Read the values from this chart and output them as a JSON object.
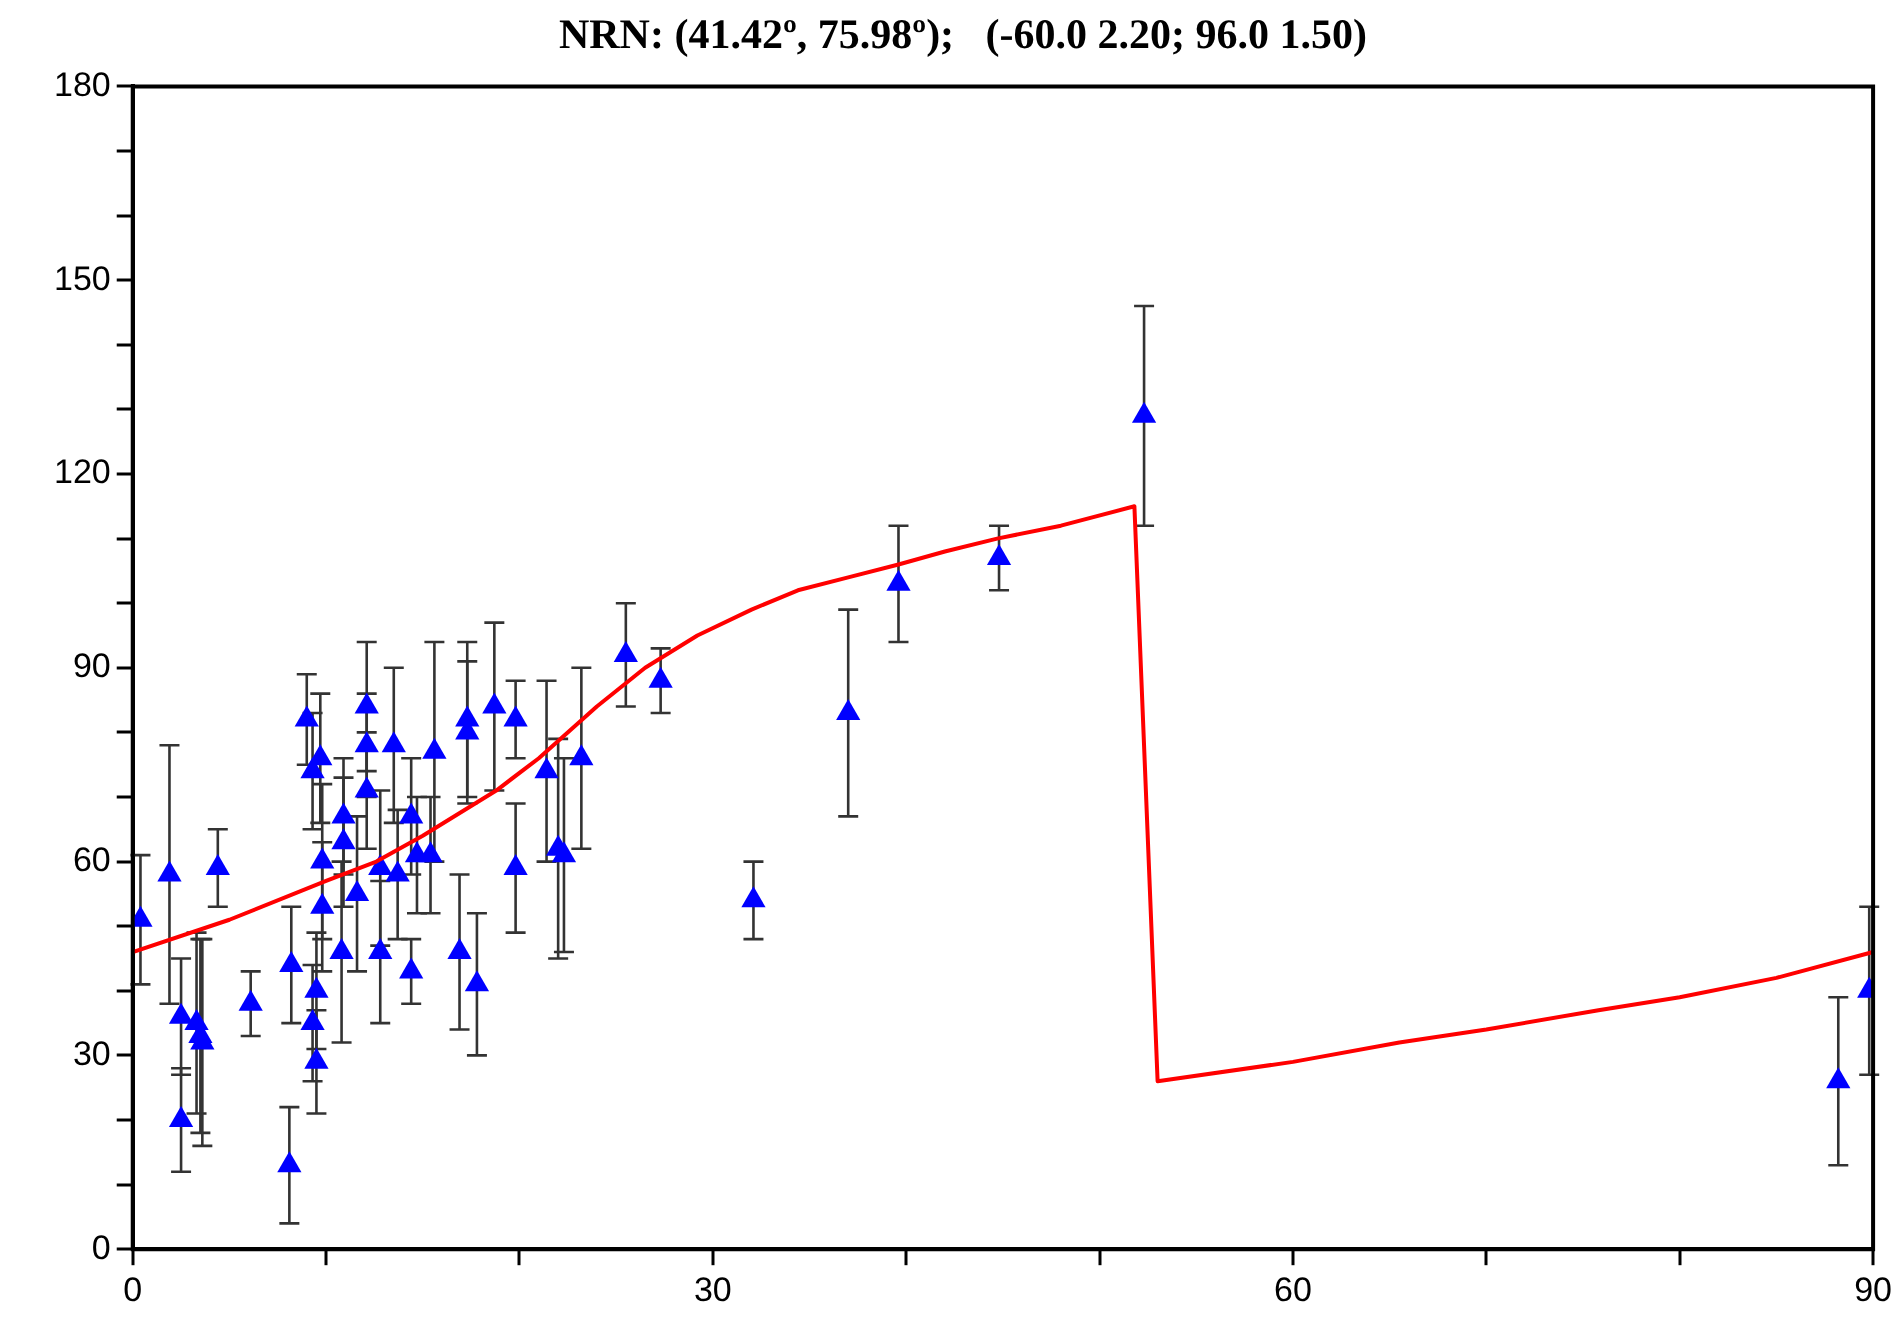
{
  "chart_data": {
    "type": "scatter",
    "title": "NRN: (41.42º, 75.98º);   (-60.0 2.20; 96.0 1.50)",
    "xlim": [
      0,
      90
    ],
    "ylim": [
      0,
      180
    ],
    "xticks": [
      0,
      {
        "value": 10,
        "label": null
      },
      {
        "value": 20,
        "label": null
      },
      30,
      {
        "value": 40,
        "label": null
      },
      {
        "value": 50,
        "label": null
      },
      60,
      {
        "value": 70,
        "label": null
      },
      {
        "value": 80,
        "label": null
      },
      90
    ],
    "yticks": [
      0,
      {
        "value": 10,
        "label": null
      },
      {
        "value": 20,
        "label": null
      },
      30,
      {
        "value": 40,
        "label": null
      },
      {
        "value": 50,
        "label": null
      },
      60,
      {
        "value": 70,
        "label": null
      },
      {
        "value": 80,
        "label": null
      },
      90,
      {
        "value": 100,
        "label": null
      },
      {
        "value": 110,
        "label": null
      },
      120,
      {
        "value": 130,
        "label": null
      },
      {
        "value": 140,
        "label": null
      },
      150,
      {
        "value": 160,
        "label": null
      },
      {
        "value": 170,
        "label": null
      },
      180
    ],
    "grid": false,
    "legend": false,
    "marker": "triangle",
    "series": [
      {
        "type": "scatter",
        "color": "#0000ff",
        "x": [
          0.4,
          1.9,
          2.5,
          2.5,
          3.3,
          3.5,
          3.6,
          4.4,
          6.1,
          8.2,
          8.1,
          9.0,
          9.3,
          9.7,
          9.8,
          9.8,
          9.5,
          9.5,
          9.3,
          10.9,
          10.9,
          11.6,
          10.8,
          12.1,
          12.1,
          12.1,
          12.8,
          12.8,
          13.5,
          13.7,
          14.4,
          14.4,
          14.7,
          15.4,
          15.6,
          16.9,
          17.3,
          17.3,
          17.8,
          18.7,
          19.8,
          19.8,
          21.4,
          22.0,
          22.3,
          23.2,
          25.5,
          27.3,
          32.1,
          37.0,
          39.6,
          44.8,
          52.3,
          88.2,
          89.8
        ],
        "values": [
          51,
          58,
          36,
          20,
          35,
          33,
          32,
          59,
          38,
          44,
          13,
          82,
          74,
          76,
          60,
          53,
          40,
          29,
          35,
          67,
          63,
          55,
          46,
          84,
          78,
          71,
          46,
          59,
          78,
          58,
          67,
          43,
          61,
          61,
          77,
          46,
          82,
          80,
          41,
          84,
          82,
          59,
          74,
          62,
          61,
          76,
          92,
          88,
          54,
          83,
          103,
          107,
          129,
          26,
          40
        ],
        "errors": [
          10,
          20,
          9,
          8,
          14,
          15,
          16,
          6,
          5,
          9,
          9,
          7,
          9,
          10,
          12,
          10,
          9,
          8,
          9,
          9,
          10,
          12,
          14,
          10,
          8,
          9,
          11,
          12,
          12,
          10,
          9,
          5,
          9,
          9,
          17,
          12,
          12,
          11,
          11,
          13,
          6,
          10,
          14,
          17,
          15,
          14,
          8,
          5,
          6,
          16,
          9,
          5,
          17,
          13,
          13
        ]
      },
      {
        "type": "line",
        "color": "#ff0000",
        "marker": "none",
        "x": [
          0,
          5,
          10,
          12.6,
          15,
          18.8,
          21,
          24,
          26.5,
          29.2,
          32,
          34.4,
          37,
          39.6,
          42,
          44.7,
          48,
          51.8,
          53,
          60,
          65.5,
          70,
          75.8,
          80,
          85,
          90
        ],
        "values": [
          46,
          51,
          57,
          60,
          64,
          71,
          76,
          84,
          90,
          95,
          99,
          102,
          104,
          106,
          108,
          110,
          112,
          115,
          26,
          29,
          32,
          34,
          37,
          39,
          42,
          46
        ]
      }
    ]
  }
}
